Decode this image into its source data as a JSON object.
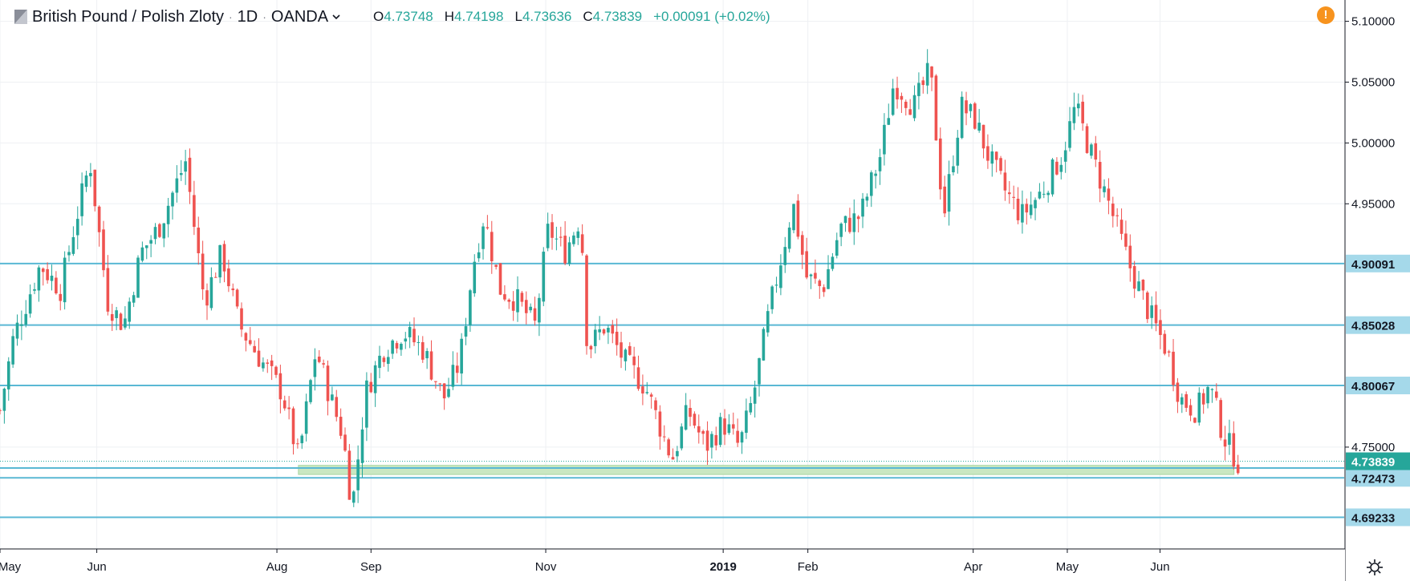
{
  "header": {
    "symbol": "British Pound / Polish Zloty",
    "interval": "1D",
    "exchange": "OANDA",
    "open_label": "O",
    "open": "4.73748",
    "high_label": "H",
    "high": "4.74198",
    "low_label": "L",
    "low": "4.73636",
    "close_label": "C",
    "close": "4.73839",
    "change": "+0.00091 (+0.02%)"
  },
  "alert_icon": "!",
  "colors": {
    "up": "#26a69a",
    "down": "#ef5350",
    "level_line": "#5ab8d4",
    "support_zone": "#c9e7c1",
    "grid": "#eef0f3",
    "price_badge": "#26a69a"
  },
  "chart_data": {
    "type": "candlestick",
    "title": "British Pound / Polish Zloty · 1D · OANDA",
    "y_axis": {
      "ylim": [
        4.6663,
        5.1175
      ],
      "ticks": [
        "5.10000",
        "5.05000",
        "5.00000",
        "4.95000",
        "4.75000"
      ]
    },
    "x_axis": {
      "ticks": [
        {
          "label": "May",
          "pos": 0.0
        },
        {
          "label": "Jun",
          "pos": 0.072
        },
        {
          "label": "Aug",
          "pos": 0.206
        },
        {
          "label": "Sep",
          "pos": 0.276
        },
        {
          "label": "Nov",
          "pos": 0.406
        },
        {
          "label": "2019",
          "pos": 0.538
        },
        {
          "label": "Feb",
          "pos": 0.601
        },
        {
          "label": "Apr",
          "pos": 0.724
        },
        {
          "label": "May",
          "pos": 0.794
        },
        {
          "label": "Jun",
          "pos": 0.863
        }
      ]
    },
    "horizontal_levels": [
      {
        "value": 4.90091,
        "label": "4.90091"
      },
      {
        "value": 4.85028,
        "label": "4.85028"
      },
      {
        "value": 4.80067,
        "label": "4.80067"
      },
      {
        "value": 4.73283,
        "label": "4.73283"
      },
      {
        "value": 4.72473,
        "label": "4.72473"
      },
      {
        "value": 4.69233,
        "label": "4.69233"
      }
    ],
    "support_zone": {
      "from": 4.7275,
      "to": 4.735
    },
    "last_price": {
      "value": 4.73839,
      "label": "4.73839"
    },
    "path_points": [
      [
        0.0,
        4.78
      ],
      [
        0.01,
        4.84
      ],
      [
        0.03,
        4.9
      ],
      [
        0.045,
        4.88
      ],
      [
        0.055,
        4.93
      ],
      [
        0.067,
        4.985
      ],
      [
        0.08,
        4.87
      ],
      [
        0.092,
        4.85
      ],
      [
        0.105,
        4.91
      ],
      [
        0.118,
        4.93
      ],
      [
        0.138,
        4.985
      ],
      [
        0.152,
        4.87
      ],
      [
        0.165,
        4.91
      ],
      [
        0.178,
        4.85
      ],
      [
        0.195,
        4.82
      ],
      [
        0.21,
        4.795
      ],
      [
        0.222,
        4.74
      ],
      [
        0.235,
        4.83
      ],
      [
        0.246,
        4.79
      ],
      [
        0.255,
        4.76
      ],
      [
        0.262,
        4.7
      ],
      [
        0.272,
        4.795
      ],
      [
        0.285,
        4.83
      ],
      [
        0.3,
        4.845
      ],
      [
        0.315,
        4.83
      ],
      [
        0.33,
        4.79
      ],
      [
        0.342,
        4.82
      ],
      [
        0.352,
        4.9
      ],
      [
        0.36,
        4.94
      ],
      [
        0.372,
        4.88
      ],
      [
        0.385,
        4.87
      ],
      [
        0.398,
        4.85
      ],
      [
        0.408,
        4.93
      ],
      [
        0.42,
        4.91
      ],
      [
        0.432,
        4.94
      ],
      [
        0.437,
        4.83
      ],
      [
        0.45,
        4.85
      ],
      [
        0.465,
        4.82
      ],
      [
        0.48,
        4.8
      ],
      [
        0.49,
        4.77
      ],
      [
        0.5,
        4.74
      ],
      [
        0.512,
        4.78
      ],
      [
        0.525,
        4.75
      ],
      [
        0.538,
        4.77
      ],
      [
        0.55,
        4.75
      ],
      [
        0.56,
        4.79
      ],
      [
        0.572,
        4.86
      ],
      [
        0.59,
        4.95
      ],
      [
        0.6,
        4.89
      ],
      [
        0.612,
        4.88
      ],
      [
        0.625,
        4.93
      ],
      [
        0.64,
        4.94
      ],
      [
        0.655,
        4.99
      ],
      [
        0.665,
        5.05
      ],
      [
        0.68,
        5.03
      ],
      [
        0.692,
        5.06
      ],
      [
        0.702,
        4.94
      ],
      [
        0.715,
        5.03
      ],
      [
        0.725,
        5.02
      ],
      [
        0.735,
        4.99
      ],
      [
        0.748,
        4.96
      ],
      [
        0.76,
        4.94
      ],
      [
        0.775,
        4.96
      ],
      [
        0.79,
        4.99
      ],
      [
        0.8,
        5.03
      ],
      [
        0.812,
        4.99
      ],
      [
        0.825,
        4.95
      ],
      [
        0.84,
        4.9
      ],
      [
        0.855,
        4.86
      ],
      [
        0.868,
        4.83
      ],
      [
        0.878,
        4.79
      ],
      [
        0.89,
        4.78
      ],
      [
        0.9,
        4.8
      ],
      [
        0.91,
        4.76
      ],
      [
        0.921,
        4.738
      ]
    ]
  }
}
